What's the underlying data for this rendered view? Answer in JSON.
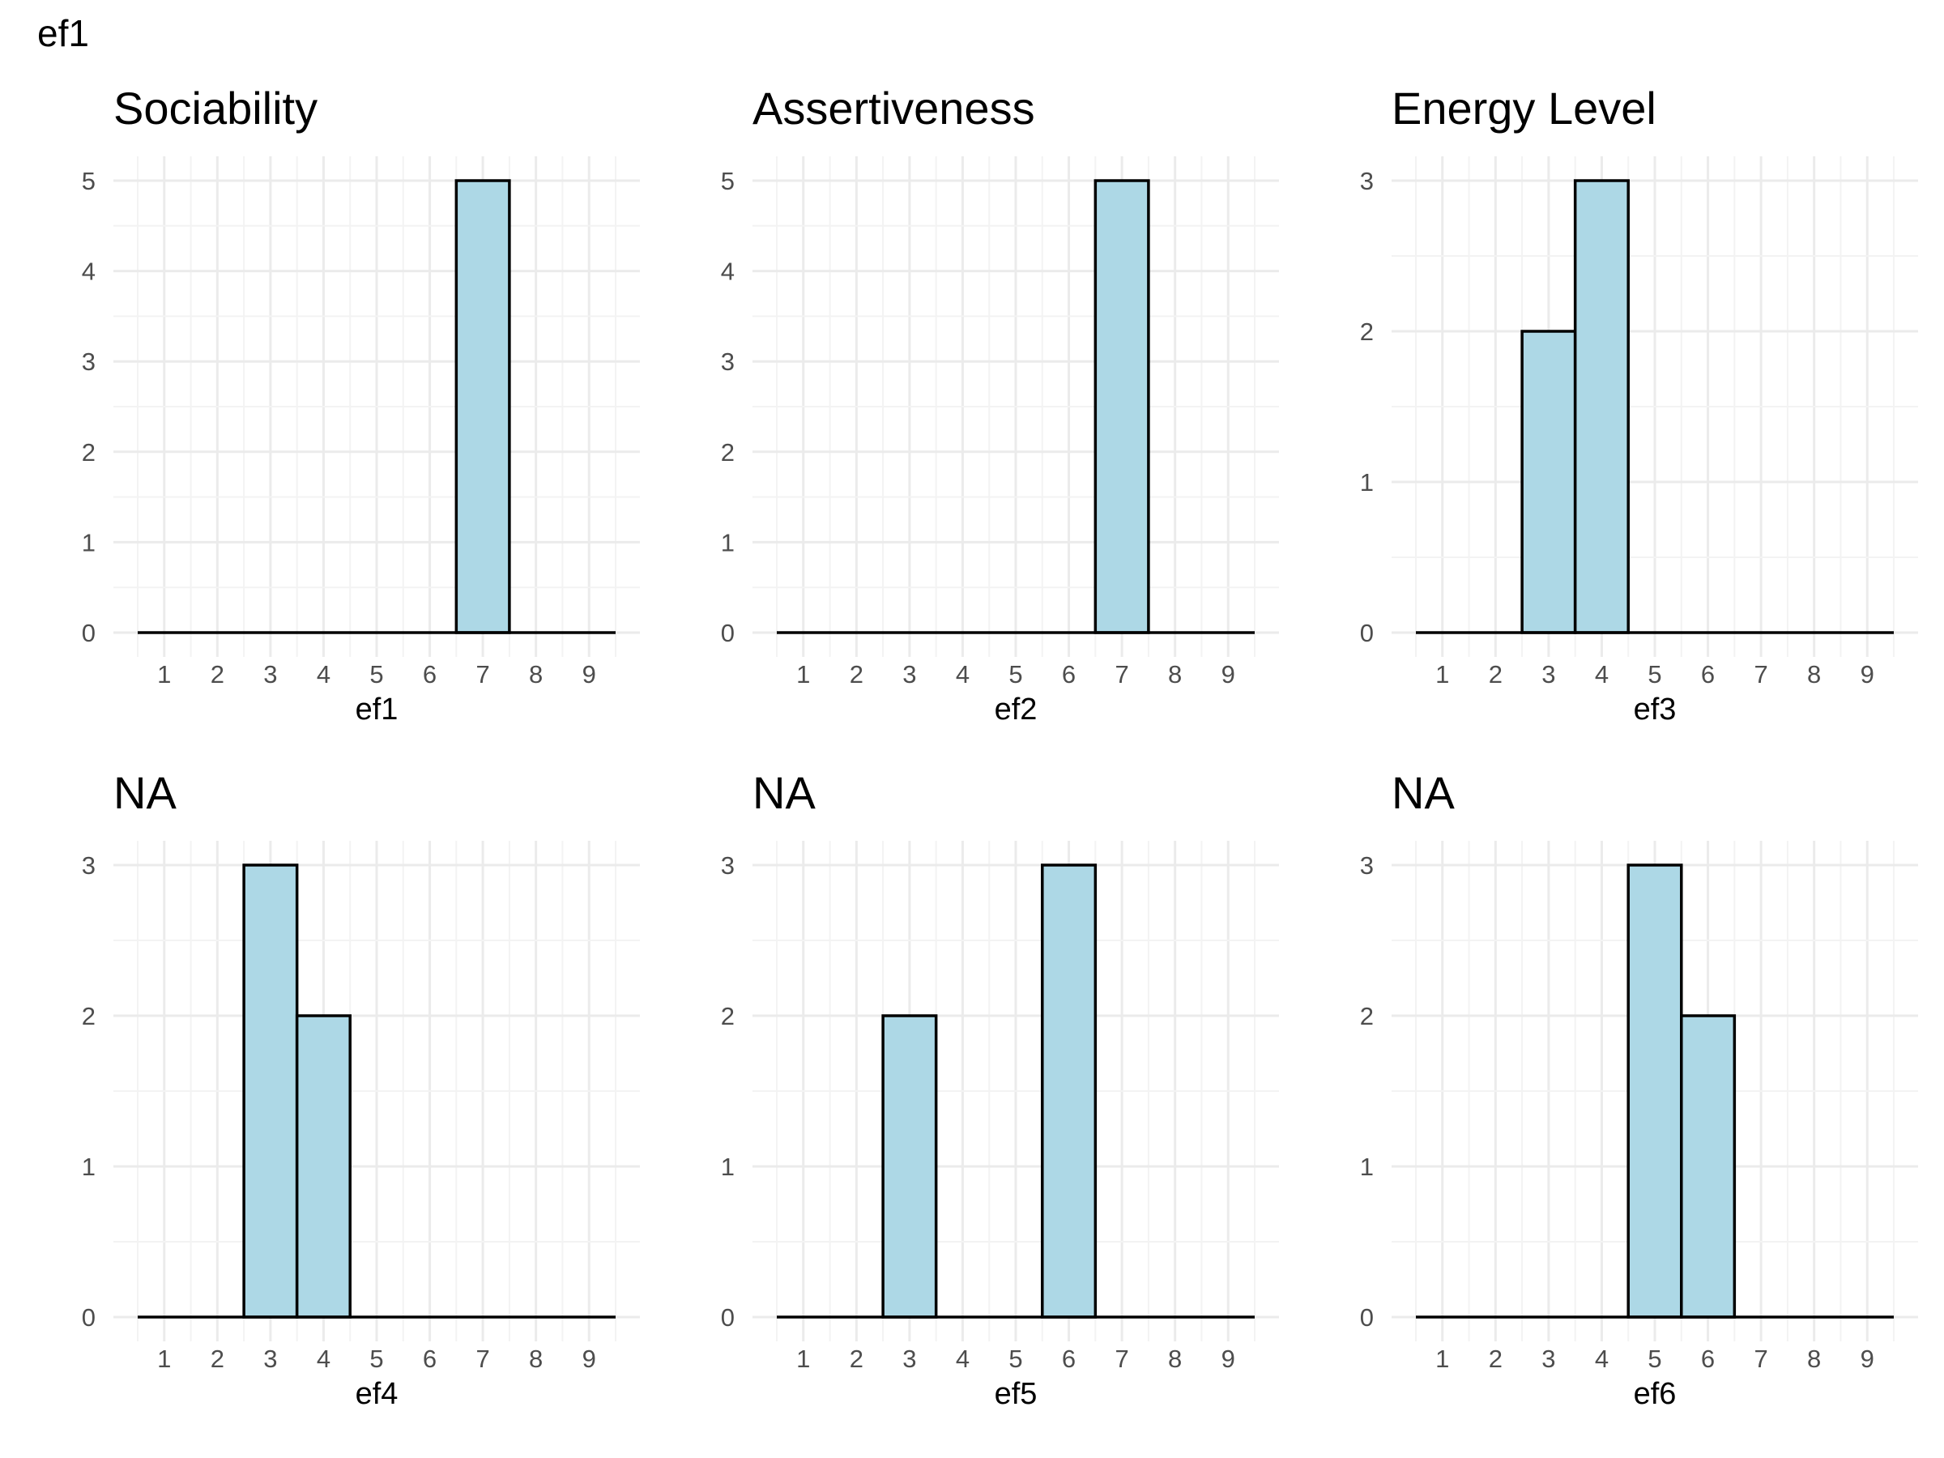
{
  "page": {
    "title": "ef1"
  },
  "chart_data": [
    {
      "type": "bar",
      "title": "Sociability",
      "xlabel": "ef1",
      "ylabel": "",
      "x_ticks": [
        1,
        2,
        3,
        4,
        5,
        6,
        7,
        8,
        9
      ],
      "xlim": [
        0.5,
        9.5
      ],
      "ylim": [
        0,
        5
      ],
      "y_ticks": [
        0,
        1,
        2,
        3,
        4,
        5
      ],
      "grid": true,
      "bar_fill": "#add8e6",
      "bar_outline": "#000000",
      "values": [
        0,
        0,
        0,
        0,
        0,
        0,
        5,
        0,
        0
      ]
    },
    {
      "type": "bar",
      "title": "Assertiveness",
      "xlabel": "ef2",
      "ylabel": "",
      "x_ticks": [
        1,
        2,
        3,
        4,
        5,
        6,
        7,
        8,
        9
      ],
      "xlim": [
        0.5,
        9.5
      ],
      "ylim": [
        0,
        5
      ],
      "y_ticks": [
        0,
        1,
        2,
        3,
        4,
        5
      ],
      "grid": true,
      "bar_fill": "#add8e6",
      "bar_outline": "#000000",
      "values": [
        0,
        0,
        0,
        0,
        0,
        0,
        5,
        0,
        0
      ]
    },
    {
      "type": "bar",
      "title": "Energy Level",
      "xlabel": "ef3",
      "ylabel": "",
      "x_ticks": [
        1,
        2,
        3,
        4,
        5,
        6,
        7,
        8,
        9
      ],
      "xlim": [
        0.5,
        9.5
      ],
      "ylim": [
        0,
        3
      ],
      "y_ticks": [
        0,
        1,
        2,
        3
      ],
      "grid": true,
      "bar_fill": "#add8e6",
      "bar_outline": "#000000",
      "values": [
        0,
        0,
        2,
        3,
        0,
        0,
        0,
        0,
        0
      ]
    },
    {
      "type": "bar",
      "title": "NA",
      "xlabel": "ef4",
      "ylabel": "",
      "x_ticks": [
        1,
        2,
        3,
        4,
        5,
        6,
        7,
        8,
        9
      ],
      "xlim": [
        0.5,
        9.5
      ],
      "ylim": [
        0,
        3
      ],
      "y_ticks": [
        0,
        1,
        2,
        3
      ],
      "grid": true,
      "bar_fill": "#add8e6",
      "bar_outline": "#000000",
      "values": [
        0,
        0,
        3,
        2,
        0,
        0,
        0,
        0,
        0
      ]
    },
    {
      "type": "bar",
      "title": "NA",
      "xlabel": "ef5",
      "ylabel": "",
      "x_ticks": [
        1,
        2,
        3,
        4,
        5,
        6,
        7,
        8,
        9
      ],
      "xlim": [
        0.5,
        9.5
      ],
      "ylim": [
        0,
        3
      ],
      "y_ticks": [
        0,
        1,
        2,
        3
      ],
      "grid": true,
      "bar_fill": "#add8e6",
      "bar_outline": "#000000",
      "values": [
        0,
        0,
        2,
        0,
        0,
        3,
        0,
        0,
        0
      ]
    },
    {
      "type": "bar",
      "title": "NA",
      "xlabel": "ef6",
      "ylabel": "",
      "x_ticks": [
        1,
        2,
        3,
        4,
        5,
        6,
        7,
        8,
        9
      ],
      "xlim": [
        0.5,
        9.5
      ],
      "ylim": [
        0,
        3
      ],
      "y_ticks": [
        0,
        1,
        2,
        3
      ],
      "grid": true,
      "bar_fill": "#add8e6",
      "bar_outline": "#000000",
      "values": [
        0,
        0,
        0,
        0,
        3,
        2,
        0,
        0,
        0
      ]
    }
  ]
}
